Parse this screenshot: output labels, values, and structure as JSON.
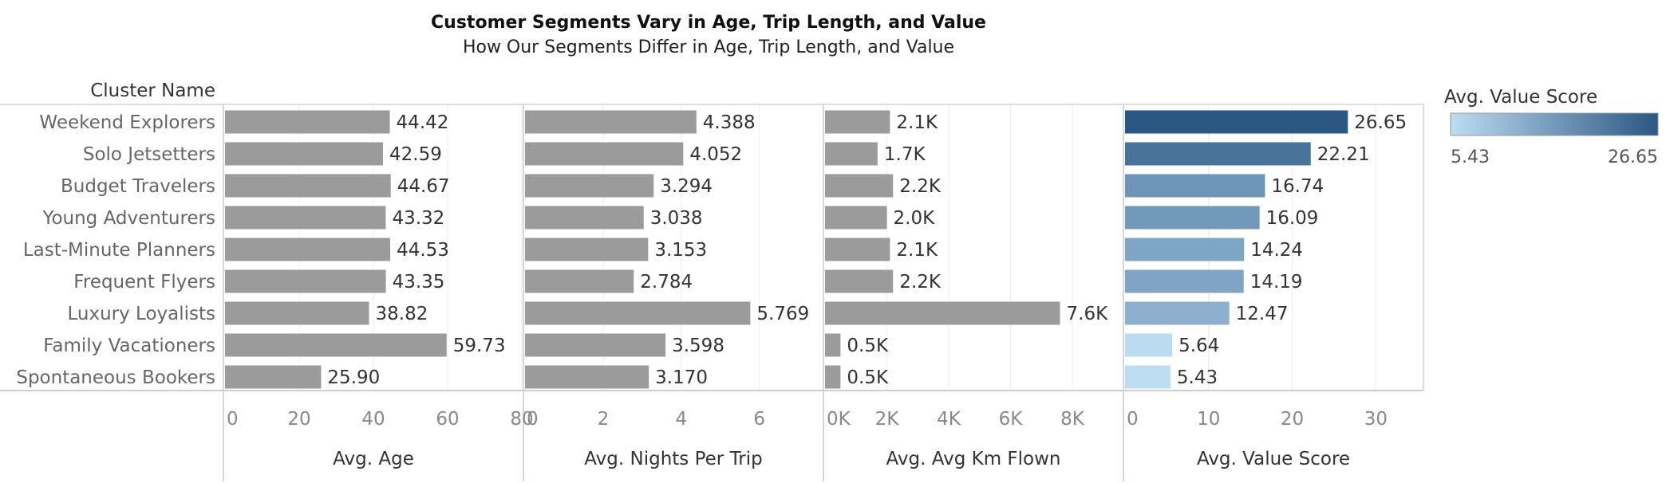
{
  "chart_data": {
    "type": "bar",
    "orientation": "horizontal",
    "title": "Customer Segments Vary in Age, Trip Length, and Value",
    "subtitle": "How Our Segments Differ in Age, Trip Length, and Value",
    "row_header": "Cluster Name",
    "categories": [
      "Weekend Explorers",
      "Solo Jetsetters",
      "Budget Travelers",
      "Young Adventurers",
      "Last-Minute Planners",
      "Frequent Flyers",
      "Luxury Loyalists",
      "Family Vacationers",
      "Spontaneous Bookers"
    ],
    "panels": [
      {
        "name": "Avg. Age",
        "values": [
          44.42,
          42.59,
          44.67,
          43.32,
          44.53,
          43.35,
          38.82,
          59.73,
          25.9
        ],
        "labels": [
          "44.42",
          "42.59",
          "44.67",
          "43.32",
          "44.53",
          "43.35",
          "38.82",
          "59.73",
          "25.90"
        ],
        "xlim": [
          0,
          80
        ],
        "ticks": [
          0,
          20,
          40,
          60,
          80
        ],
        "tick_labels": [
          "0",
          "20",
          "40",
          "60",
          "80"
        ],
        "color": "#9b9b9b"
      },
      {
        "name": "Avg. Nights Per Trip",
        "values": [
          4.388,
          4.052,
          3.294,
          3.038,
          3.153,
          2.784,
          5.769,
          3.598,
          3.17
        ],
        "labels": [
          "4.388",
          "4.052",
          "3.294",
          "3.038",
          "3.153",
          "2.784",
          "5.769",
          "3.598",
          "3.170"
        ],
        "xlim": [
          0,
          7.6
        ],
        "ticks": [
          0,
          2,
          4,
          6
        ],
        "tick_labels": [
          "0",
          "2",
          "4",
          "6"
        ],
        "color": "#9b9b9b"
      },
      {
        "name": "Avg. Avg Km Flown",
        "values": [
          2100,
          1700,
          2200,
          2000,
          2100,
          2200,
          7600,
          500,
          500
        ],
        "labels": [
          "2.1K",
          "1.7K",
          "2.2K",
          "2.0K",
          "2.1K",
          "2.2K",
          "7.6K",
          "0.5K",
          "0.5K"
        ],
        "xlim": [
          0,
          9600
        ],
        "ticks": [
          0,
          2000,
          4000,
          6000,
          8000
        ],
        "tick_labels": [
          "0K",
          "2K",
          "4K",
          "6K",
          "8K"
        ],
        "color": "#9b9b9b"
      },
      {
        "name": "Avg. Value Score",
        "values": [
          26.65,
          22.21,
          16.74,
          16.09,
          14.24,
          14.19,
          12.47,
          5.64,
          5.43
        ],
        "labels": [
          "26.65",
          "22.21",
          "16.74",
          "16.09",
          "14.24",
          "14.19",
          "12.47",
          "5.64",
          "5.43"
        ],
        "xlim": [
          0,
          35.5
        ],
        "ticks": [
          0,
          10,
          20,
          30
        ],
        "tick_labels": [
          "0",
          "10",
          "20",
          "30"
        ],
        "color_scale": true
      }
    ],
    "legend": {
      "title": "Avg. Value Score",
      "min_label": "5.43",
      "max_label": "26.65",
      "min": 5.43,
      "max": 26.65,
      "color_low": "#bcdcf2",
      "color_high": "#2a5783",
      "placement": "right"
    },
    "grid": true
  }
}
